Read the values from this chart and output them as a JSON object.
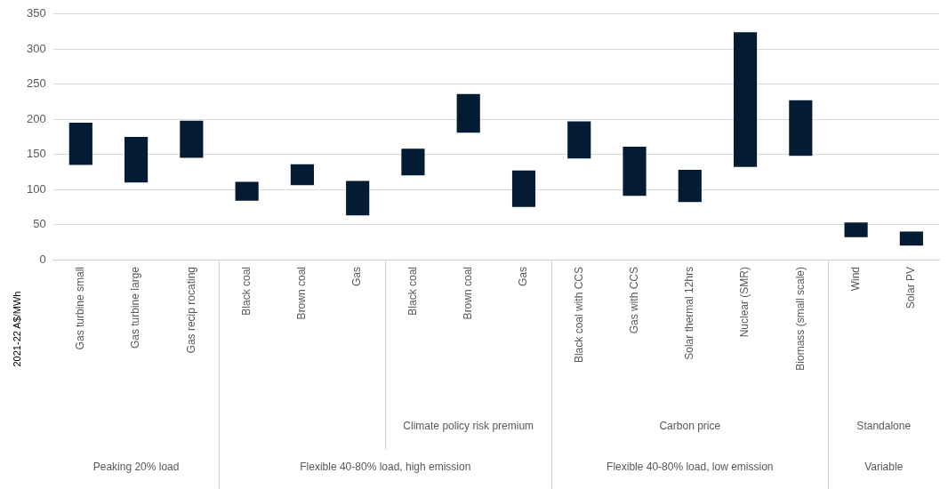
{
  "chart_data": {
    "type": "bar",
    "ylabel": "2021-22 A$/MWh",
    "categories": [
      "Gas turbine small",
      "Gas turbine large",
      "Gas recip rocating",
      "Black coal",
      "Brown coal",
      "Gas",
      "Black coal",
      "Brown coal",
      "Gas",
      "Black coal with CCS",
      "Gas with CCS",
      "Solar thermal 12hrs",
      "Nuclear (SMR)",
      "Biomass (small scale)",
      "Wind",
      "Solar PV"
    ],
    "base": [
      135,
      110,
      145,
      84,
      106,
      63,
      120,
      181,
      75,
      144,
      91,
      82,
      132,
      148,
      32,
      20
    ],
    "values": [
      60,
      65,
      53,
      27,
      30,
      49,
      38,
      55,
      52,
      53,
      70,
      46,
      192,
      79,
      21,
      20
    ],
    "color": "#031c33",
    "ylim": [
      0,
      350
    ],
    "yticks": [
      0,
      50,
      100,
      150,
      200,
      250,
      300,
      350
    ],
    "grid": "y",
    "legend": false,
    "annotations": [
      "Climate policy risk premium",
      "Carbon price",
      "Standalone",
      "Peaking 20% load",
      "Flexible 40-80% load, high emission",
      "Flexible 40-80% load, low emission",
      "Variable"
    ]
  }
}
